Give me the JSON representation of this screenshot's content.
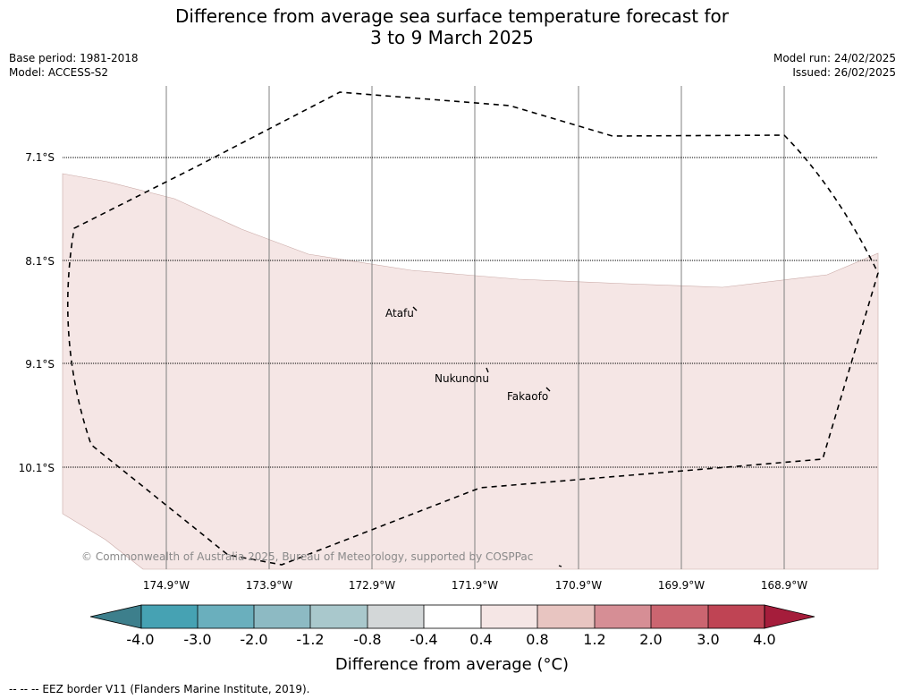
{
  "title_line1": "Difference from average sea surface temperature forecast for",
  "title_line2": "3 to 9 March 2025",
  "base_period": "Base period: 1981-2018",
  "model": "Model: ACCESS-S2",
  "model_run": "Model run: 24/02/2025",
  "issued": "Issued: 26/02/2025",
  "lat_labels": [
    "7.1°S",
    "8.1°S",
    "9.1°S",
    "10.1°S"
  ],
  "lon_labels": [
    "174.9°W",
    "173.9°W",
    "172.9°W",
    "171.9°W",
    "170.9°W",
    "169.9°W",
    "168.9°W"
  ],
  "places": [
    "Atafu",
    "Nukunonu",
    "Fakaofo"
  ],
  "copyright": "© Commonwealth of Australia 2025, Bureau of Meteorology, supported by COSPPac",
  "colorbar": {
    "labels": [
      "-4.0",
      "-3.0",
      "-2.0",
      "-1.2",
      "-0.8",
      "-0.4",
      "0.4",
      "0.8",
      "1.2",
      "2.0",
      "3.0",
      "4.0"
    ],
    "colors": [
      "#3d7f8c",
      "#46a2b3",
      "#6aafbd",
      "#8dbac3",
      "#a9c8cc",
      "#d3d7d8",
      "#ffffff",
      "#f5e6e5",
      "#e8c5c1",
      "#d68e95",
      "#cb6570",
      "#bf4454",
      "#a51d3b"
    ],
    "title": "Difference from average (°C)"
  },
  "footer": "--  --  -- EEZ border V11 (Flanders Marine Institute, 2019).",
  "shading_color": "#f5e6e5"
}
